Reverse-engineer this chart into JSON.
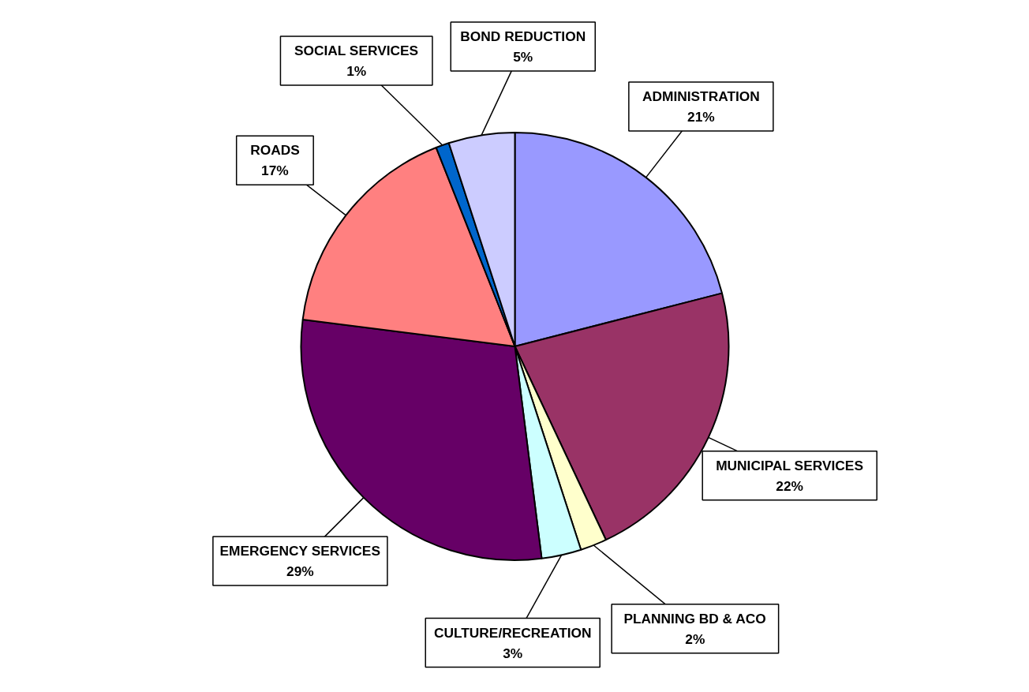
{
  "chart_data": {
    "type": "pie",
    "categories": [
      "ADMINISTRATION",
      "MUNICIPAL SERVICES",
      "PLANNING BD & ACO",
      "CULTURE/RECREATION",
      "EMERGENCY SERVICES",
      "ROADS",
      "SOCIAL SERVICES",
      "BOND REDUCTION"
    ],
    "values": [
      21,
      22,
      2,
      3,
      29,
      17,
      1,
      5
    ],
    "colors": [
      "#9999ff",
      "#993366",
      "#ffffcc",
      "#ccffff",
      "#660066",
      "#ff8080",
      "#0066cc",
      "#ccccff"
    ],
    "value_labels": [
      "21%",
      "22%",
      "2%",
      "3%",
      "29%",
      "17%",
      "1%",
      "5%"
    ]
  }
}
